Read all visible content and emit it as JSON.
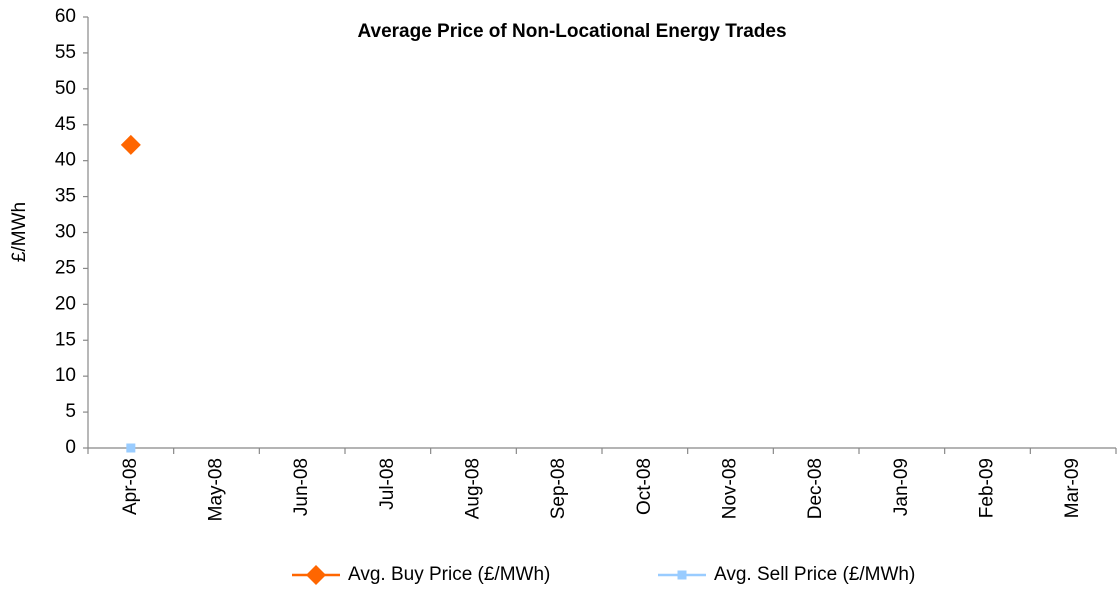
{
  "chart_data": {
    "type": "line",
    "title": "Average Price of Non-Locational Energy Trades",
    "y_label": "£/MWh",
    "categories": [
      "Apr-08",
      "May-08",
      "Jun-08",
      "Jul-08",
      "Aug-08",
      "Sep-08",
      "Oct-08",
      "Nov-08",
      "Dec-08",
      "Jan-09",
      "Feb-09",
      "Mar-09"
    ],
    "series": [
      {
        "name": "Avg. Buy Price (£/MWh)",
        "color": "#ff6600",
        "marker": "diamond",
        "values": [
          42.2,
          null,
          null,
          null,
          null,
          null,
          null,
          null,
          null,
          null,
          null,
          null
        ]
      },
      {
        "name": "Avg. Sell Price (£/MWh)",
        "color": "#99ccff",
        "marker": "square",
        "values": [
          0,
          null,
          null,
          null,
          null,
          null,
          null,
          null,
          null,
          null,
          null,
          null
        ]
      }
    ],
    "ylim": [
      0,
      60
    ],
    "yticks": [
      0,
      5,
      10,
      15,
      20,
      25,
      30,
      35,
      40,
      45,
      50,
      55,
      60
    ],
    "grid": false,
    "legend": "bottom"
  }
}
